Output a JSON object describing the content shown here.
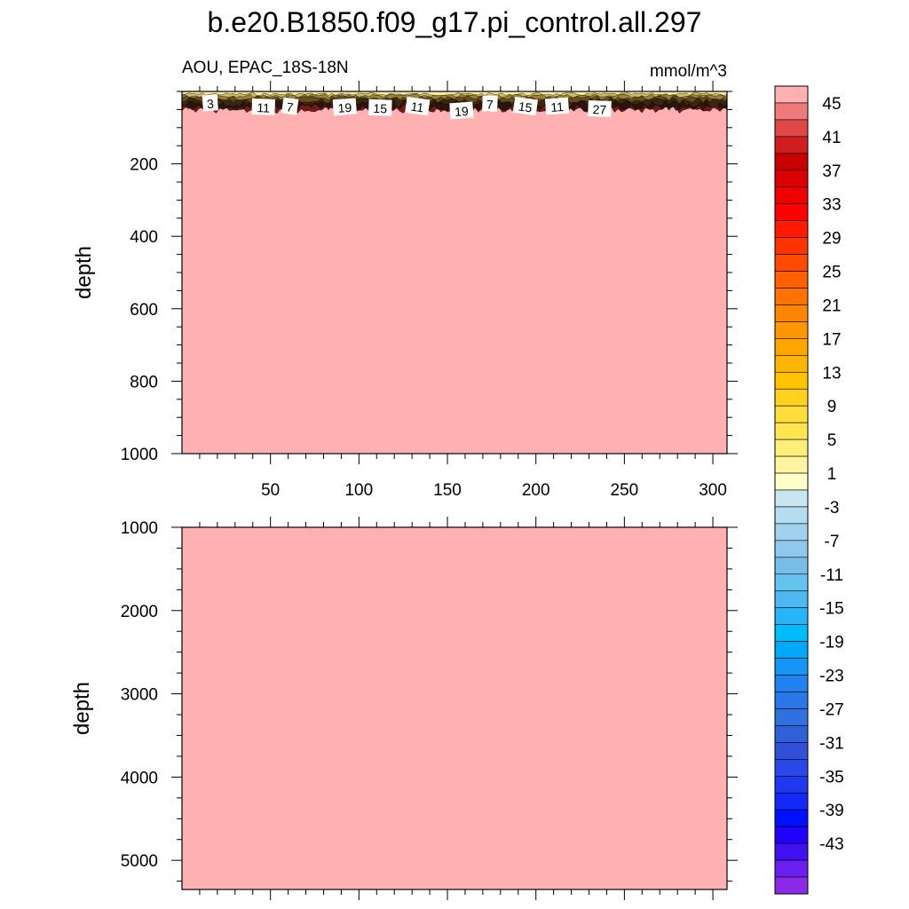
{
  "title": "b.e20.B1850.f09_g17.pi_control.all.297",
  "subtitle_left": "AOU, EPAC_18S-18N",
  "subtitle_right": "mmol/m^3",
  "chart_data": [
    {
      "type": "heatmap",
      "panel": "upper",
      "xlabel": "",
      "ylabel": "depth",
      "xlim": [
        0,
        308
      ],
      "ylim": [
        1000,
        0
      ],
      "x_ticks": [
        50,
        100,
        150,
        200,
        250,
        300
      ],
      "y_ticks": [
        200,
        400,
        600,
        800,
        1000
      ],
      "background_value": 47,
      "surface_layer_bottom_depth": 55,
      "contour_labels": [
        {
          "value": "3",
          "x": 16,
          "depth": 34
        },
        {
          "value": "11",
          "x": 46,
          "depth": 45
        },
        {
          "value": "7",
          "x": 61,
          "depth": 43
        },
        {
          "value": "19",
          "x": 92,
          "depth": 45
        },
        {
          "value": "15",
          "x": 112,
          "depth": 47
        },
        {
          "value": "11",
          "x": 133,
          "depth": 43
        },
        {
          "value": "19",
          "x": 158,
          "depth": 55
        },
        {
          "value": "7",
          "x": 174,
          "depth": 36
        },
        {
          "value": "15",
          "x": 194,
          "depth": 43
        },
        {
          "value": "11",
          "x": 212,
          "depth": 43
        },
        {
          "value": "27",
          "x": 236,
          "depth": 50
        }
      ]
    },
    {
      "type": "heatmap",
      "panel": "lower",
      "xlabel": "",
      "ylabel": "depth",
      "xlim": [
        0,
        308
      ],
      "ylim": [
        5350,
        1000
      ],
      "x_ticks": [
        50,
        100,
        150,
        200,
        250,
        300
      ],
      "y_ticks": [
        1000,
        2000,
        3000,
        4000,
        5000
      ],
      "background_value": 47
    }
  ],
  "colorbar": {
    "labels": [
      "45",
      "41",
      "37",
      "33",
      "29",
      "25",
      "21",
      "17",
      "13",
      "9",
      "5",
      "1",
      "-3",
      "-7",
      "-11",
      "-15",
      "-19",
      "-23",
      "-27",
      "-31",
      "-35",
      "-39",
      "-43"
    ],
    "colors": [
      "#ffb0b0",
      "#ee7a7a",
      "#e04848",
      "#d01e1e",
      "#c80000",
      "#dc0000",
      "#f00000",
      "#ff0000",
      "#ff1a00",
      "#ff3300",
      "#ff4a00",
      "#ff6000",
      "#ff7200",
      "#ff8400",
      "#ff9600",
      "#ffa500",
      "#ffb500",
      "#ffc400",
      "#ffd21e",
      "#ffdd3c",
      "#ffe650",
      "#ffee78",
      "#fff5a0",
      "#ffffc8",
      "#c8e6f0",
      "#b4def0",
      "#a0d2ee",
      "#8ec8ec",
      "#78bce8",
      "#64c4f0",
      "#50b8f0",
      "#28b4f8",
      "#00bcf8",
      "#00a8f8",
      "#1496f8",
      "#2082f0",
      "#2878e8",
      "#3070e0",
      "#3060d8",
      "#3050d8",
      "#2848e8",
      "#2038f0",
      "#1428f8",
      "#0010ff",
      "#2000ff",
      "#4010f0",
      "#6820f0",
      "#8c28e8"
    ]
  }
}
